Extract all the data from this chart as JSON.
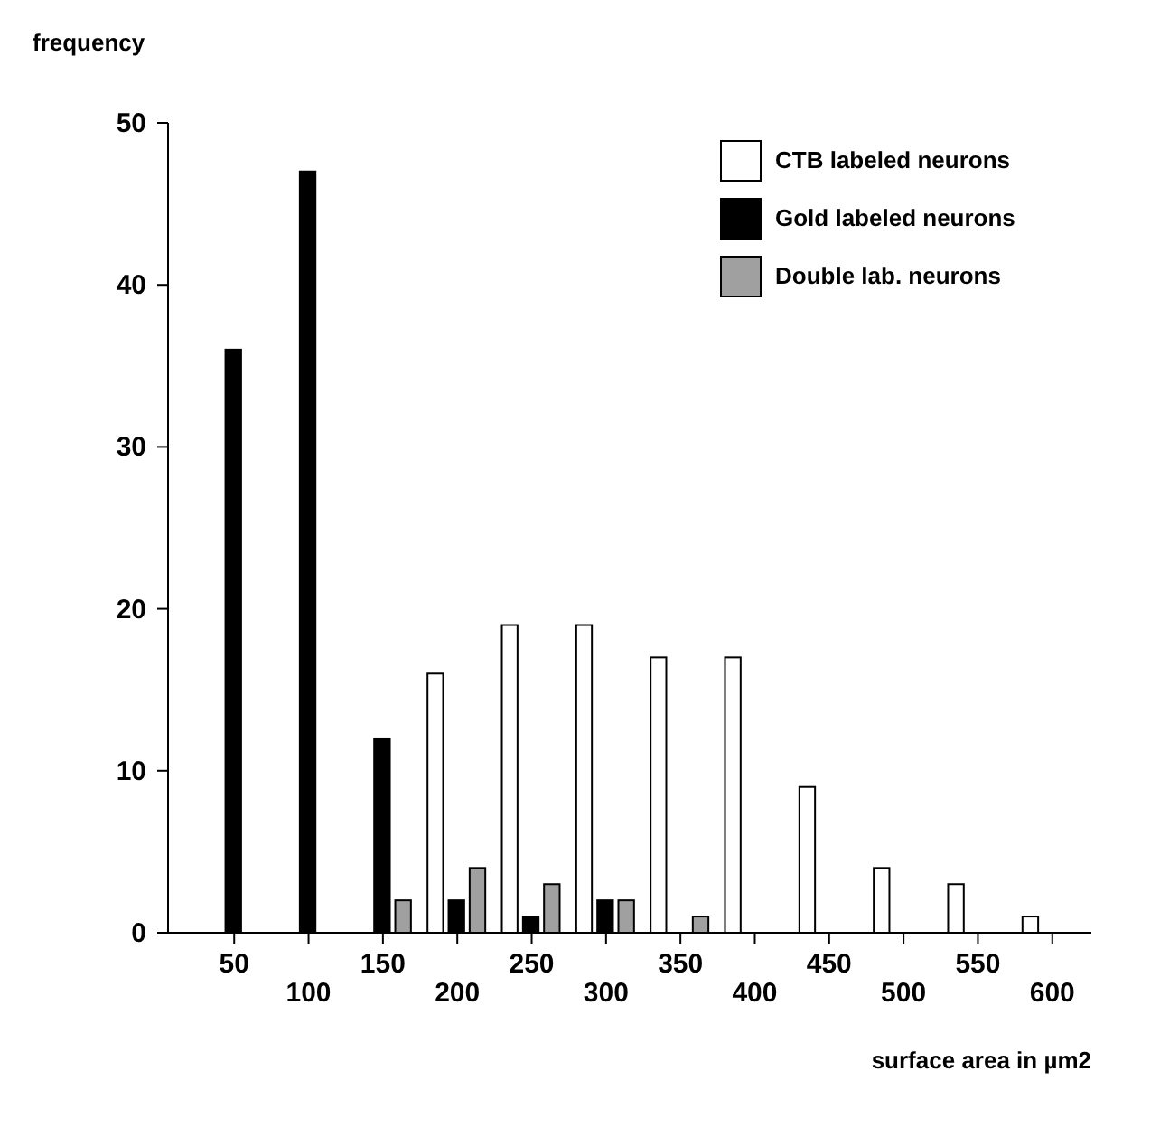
{
  "chart_data": {
    "type": "bar",
    "ylabel": "frequency",
    "xlabel": "surface area in µm2",
    "categories": [
      "50",
      "100",
      "150",
      "200",
      "250",
      "300",
      "350",
      "400",
      "450",
      "500",
      "550",
      "600"
    ],
    "series": [
      {
        "name": "CTB labeled neurons",
        "color": "#ffffff",
        "values": [
          null,
          null,
          null,
          16,
          19,
          19,
          17,
          17,
          9,
          4,
          3,
          1
        ]
      },
      {
        "name": "Gold labeled neurons",
        "color": "#000000",
        "values": [
          36,
          47,
          12,
          2,
          1,
          2,
          null,
          null,
          null,
          null,
          null,
          null
        ]
      },
      {
        "name": "Double lab. neurons",
        "color": "#a0a0a0",
        "values": [
          null,
          null,
          2,
          4,
          3,
          2,
          1,
          null,
          null,
          null,
          null,
          null
        ]
      }
    ],
    "ylim": [
      0,
      50
    ],
    "yticks": [
      0,
      10,
      20,
      30,
      40,
      50
    ],
    "legend": "top right"
  }
}
